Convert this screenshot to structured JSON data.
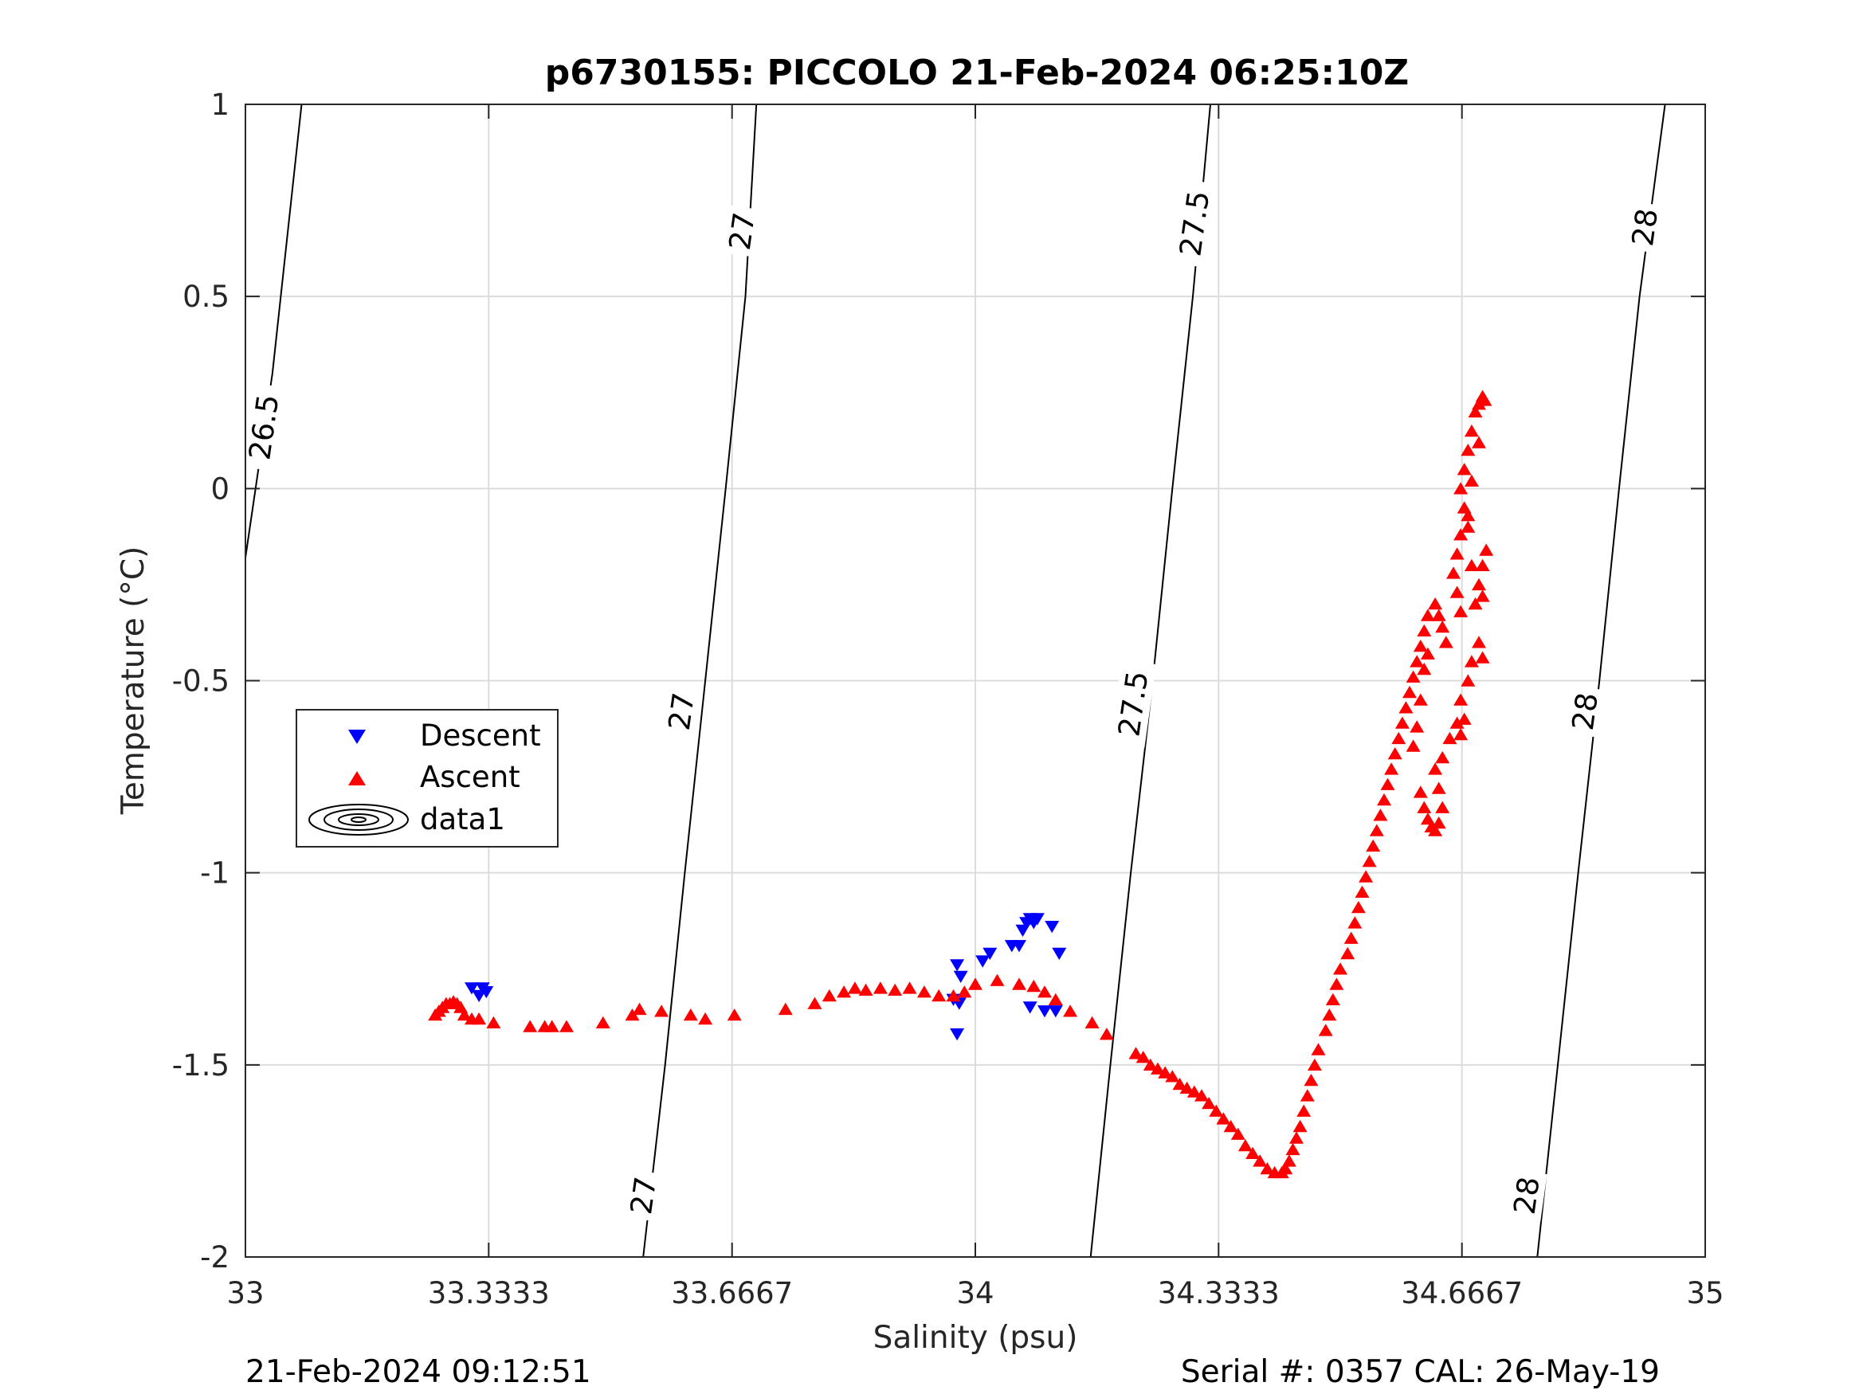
{
  "chart_data": {
    "type": "scatter",
    "title": "p6730155: PICCOLO 21-Feb-2024 06:25:10Z",
    "xlabel": "Salinity (psu)",
    "ylabel": "Temperature (°C)",
    "xlim": [
      33,
      35
    ],
    "ylim": [
      -2,
      1
    ],
    "x_ticks": [
      33,
      33.3333,
      33.6667,
      34,
      34.3333,
      34.6667,
      35
    ],
    "x_tick_labels": [
      "33",
      "33.3333",
      "33.6667",
      "34",
      "34.3333",
      "34.6667",
      "35"
    ],
    "y_ticks": [
      1,
      0.5,
      0,
      -0.5,
      -1,
      -1.5,
      -2
    ],
    "y_tick_labels": [
      "1",
      "0.5",
      "0",
      "-0.5",
      "-1",
      "-1.5",
      "-2"
    ],
    "grid": true,
    "legend_position": "middle-left",
    "footer_left": "21-Feb-2024 09:12:51",
    "footer_right": "Serial #: 0357  CAL: 26-May-19",
    "series": [
      {
        "name": "Descent",
        "marker": "triangle-down",
        "color": "#0000ff",
        "points": [
          [
            33.31,
            -1.3
          ],
          [
            33.32,
            -1.32
          ],
          [
            33.325,
            -1.3
          ],
          [
            33.33,
            -1.31
          ],
          [
            33.97,
            -1.33
          ],
          [
            33.975,
            -1.24
          ],
          [
            33.975,
            -1.42
          ],
          [
            33.98,
            -1.27
          ],
          [
            33.978,
            -1.34
          ],
          [
            34.01,
            -1.23
          ],
          [
            34.02,
            -1.21
          ],
          [
            34.05,
            -1.19
          ],
          [
            34.06,
            -1.19
          ],
          [
            34.065,
            -1.15
          ],
          [
            34.07,
            -1.13
          ],
          [
            34.075,
            -1.12
          ],
          [
            34.08,
            -1.13
          ],
          [
            34.085,
            -1.12
          ],
          [
            34.105,
            -1.14
          ],
          [
            34.115,
            -1.21
          ],
          [
            34.075,
            -1.35
          ],
          [
            34.095,
            -1.36
          ],
          [
            34.11,
            -1.36
          ]
        ]
      },
      {
        "name": "Ascent",
        "marker": "triangle-up",
        "color": "#ff0000",
        "points": [
          [
            33.26,
            -1.37
          ],
          [
            33.265,
            -1.36
          ],
          [
            33.27,
            -1.35
          ],
          [
            33.275,
            -1.34
          ],
          [
            33.28,
            -1.34
          ],
          [
            33.285,
            -1.335
          ],
          [
            33.29,
            -1.34
          ],
          [
            33.295,
            -1.35
          ],
          [
            33.3,
            -1.37
          ],
          [
            33.31,
            -1.38
          ],
          [
            33.32,
            -1.38
          ],
          [
            33.34,
            -1.39
          ],
          [
            33.39,
            -1.4
          ],
          [
            33.41,
            -1.4
          ],
          [
            33.42,
            -1.4
          ],
          [
            33.44,
            -1.4
          ],
          [
            33.49,
            -1.39
          ],
          [
            33.53,
            -1.37
          ],
          [
            33.54,
            -1.355
          ],
          [
            33.57,
            -1.36
          ],
          [
            33.61,
            -1.37
          ],
          [
            33.63,
            -1.38
          ],
          [
            33.67,
            -1.37
          ],
          [
            33.74,
            -1.355
          ],
          [
            33.78,
            -1.34
          ],
          [
            33.8,
            -1.32
          ],
          [
            33.82,
            -1.31
          ],
          [
            33.835,
            -1.3
          ],
          [
            33.85,
            -1.305
          ],
          [
            33.87,
            -1.3
          ],
          [
            33.89,
            -1.305
          ],
          [
            33.91,
            -1.3
          ],
          [
            33.93,
            -1.31
          ],
          [
            33.95,
            -1.32
          ],
          [
            33.97,
            -1.32
          ],
          [
            33.985,
            -1.31
          ],
          [
            34.0,
            -1.29
          ],
          [
            34.03,
            -1.28
          ],
          [
            34.06,
            -1.29
          ],
          [
            34.08,
            -1.295
          ],
          [
            34.095,
            -1.31
          ],
          [
            34.11,
            -1.33
          ],
          [
            34.13,
            -1.36
          ],
          [
            34.16,
            -1.39
          ],
          [
            34.18,
            -1.42
          ],
          [
            34.22,
            -1.47
          ],
          [
            34.23,
            -1.48
          ],
          [
            34.24,
            -1.5
          ],
          [
            34.25,
            -1.51
          ],
          [
            34.26,
            -1.52
          ],
          [
            34.27,
            -1.53
          ],
          [
            34.28,
            -1.55
          ],
          [
            34.29,
            -1.56
          ],
          [
            34.3,
            -1.57
          ],
          [
            34.31,
            -1.58
          ],
          [
            34.32,
            -1.6
          ],
          [
            34.33,
            -1.62
          ],
          [
            34.34,
            -1.64
          ],
          [
            34.35,
            -1.66
          ],
          [
            34.36,
            -1.68
          ],
          [
            34.37,
            -1.71
          ],
          [
            34.38,
            -1.73
          ],
          [
            34.39,
            -1.75
          ],
          [
            34.4,
            -1.77
          ],
          [
            34.41,
            -1.78
          ],
          [
            34.42,
            -1.78
          ],
          [
            34.425,
            -1.77
          ],
          [
            34.43,
            -1.75
          ],
          [
            34.435,
            -1.72
          ],
          [
            34.44,
            -1.69
          ],
          [
            34.445,
            -1.66
          ],
          [
            34.45,
            -1.62
          ],
          [
            34.455,
            -1.58
          ],
          [
            34.46,
            -1.54
          ],
          [
            34.465,
            -1.5
          ],
          [
            34.47,
            -1.46
          ],
          [
            34.48,
            -1.41
          ],
          [
            34.485,
            -1.37
          ],
          [
            34.49,
            -1.33
          ],
          [
            34.495,
            -1.29
          ],
          [
            34.5,
            -1.25
          ],
          [
            34.51,
            -1.21
          ],
          [
            34.515,
            -1.17
          ],
          [
            34.52,
            -1.13
          ],
          [
            34.525,
            -1.09
          ],
          [
            34.53,
            -1.05
          ],
          [
            34.535,
            -1.01
          ],
          [
            34.54,
            -0.97
          ],
          [
            34.545,
            -0.93
          ],
          [
            34.55,
            -0.89
          ],
          [
            34.555,
            -0.85
          ],
          [
            34.56,
            -0.81
          ],
          [
            34.565,
            -0.77
          ],
          [
            34.57,
            -0.73
          ],
          [
            34.575,
            -0.69
          ],
          [
            34.58,
            -0.65
          ],
          [
            34.585,
            -0.61
          ],
          [
            34.59,
            -0.57
          ],
          [
            34.595,
            -0.53
          ],
          [
            34.6,
            -0.49
          ],
          [
            34.605,
            -0.45
          ],
          [
            34.61,
            -0.41
          ],
          [
            34.615,
            -0.37
          ],
          [
            34.62,
            -0.33
          ],
          [
            34.63,
            -0.3
          ],
          [
            34.635,
            -0.33
          ],
          [
            34.64,
            -0.36
          ],
          [
            34.645,
            -0.4
          ],
          [
            34.62,
            -0.43
          ],
          [
            34.615,
            -0.47
          ],
          [
            34.61,
            -0.55
          ],
          [
            34.605,
            -0.62
          ],
          [
            34.6,
            -0.67
          ],
          [
            34.61,
            -0.79
          ],
          [
            34.615,
            -0.83
          ],
          [
            34.62,
            -0.86
          ],
          [
            34.625,
            -0.88
          ],
          [
            34.63,
            -0.89
          ],
          [
            34.635,
            -0.87
          ],
          [
            34.64,
            -0.83
          ],
          [
            34.635,
            -0.78
          ],
          [
            34.63,
            -0.73
          ],
          [
            34.64,
            -0.7
          ],
          [
            34.65,
            -0.65
          ],
          [
            34.66,
            -0.61
          ],
          [
            34.665,
            -0.64
          ],
          [
            34.67,
            -0.6
          ],
          [
            34.665,
            -0.55
          ],
          [
            34.675,
            -0.5
          ],
          [
            34.68,
            -0.45
          ],
          [
            34.69,
            -0.4
          ],
          [
            34.695,
            -0.44
          ],
          [
            34.685,
            -0.3
          ],
          [
            34.69,
            -0.25
          ],
          [
            34.695,
            -0.2
          ],
          [
            34.7,
            -0.16
          ],
          [
            34.695,
            -0.28
          ],
          [
            34.68,
            -0.2
          ],
          [
            34.675,
            -0.1
          ],
          [
            34.67,
            -0.05
          ],
          [
            34.665,
            -0.12
          ],
          [
            34.66,
            -0.17
          ],
          [
            34.655,
            -0.22
          ],
          [
            34.66,
            -0.27
          ],
          [
            34.665,
            -0.32
          ],
          [
            34.665,
            0.0
          ],
          [
            34.67,
            0.05
          ],
          [
            34.675,
            0.1
          ],
          [
            34.68,
            0.15
          ],
          [
            34.685,
            0.2
          ],
          [
            34.69,
            0.22
          ],
          [
            34.695,
            0.24
          ],
          [
            34.698,
            0.23
          ],
          [
            34.69,
            0.12
          ],
          [
            34.68,
            0.02
          ],
          [
            34.675,
            -0.07
          ]
        ]
      }
    ],
    "contours": [
      {
        "label": "26.5",
        "line": [
          [
            33.0,
            -0.18
          ],
          [
            33.037,
            0.3
          ],
          [
            33.077,
            1.0
          ]
        ]
      },
      {
        "label": "27",
        "line": [
          [
            33.545,
            -2.0
          ],
          [
            33.575,
            -1.5
          ],
          [
            33.602,
            -1.0
          ],
          [
            33.63,
            -0.5
          ],
          [
            33.658,
            0.0
          ],
          [
            33.685,
            0.5
          ],
          [
            33.7,
            1.0
          ]
        ]
      },
      {
        "label": "27.5",
        "line": [
          [
            34.158,
            -2.0
          ],
          [
            34.185,
            -1.5
          ],
          [
            34.213,
            -1.0
          ],
          [
            34.243,
            -0.5
          ],
          [
            34.27,
            0.0
          ],
          [
            34.298,
            0.5
          ],
          [
            34.322,
            1.0
          ]
        ]
      },
      {
        "label": "28",
        "line": [
          [
            34.77,
            -2.0
          ],
          [
            34.798,
            -1.5
          ],
          [
            34.826,
            -1.0
          ],
          [
            34.855,
            -0.5
          ],
          [
            34.882,
            0.0
          ],
          [
            34.91,
            0.5
          ],
          [
            34.945,
            1.0
          ]
        ]
      }
    ],
    "contour_label_positions": [
      {
        "text": "26.5",
        "x": 33.025,
        "y": 0.16
      },
      {
        "text": "27",
        "x": 33.597,
        "y": -0.58
      },
      {
        "text": "27",
        "x": 33.545,
        "y": -1.84
      },
      {
        "text": "27",
        "x": 33.68,
        "y": 0.67
      },
      {
        "text": "27.5",
        "x": 34.216,
        "y": -0.56
      },
      {
        "text": "27.5",
        "x": 34.3,
        "y": 0.69
      },
      {
        "text": "28",
        "x": 34.835,
        "y": -0.58
      },
      {
        "text": "28",
        "x": 34.755,
        "y": -1.84
      },
      {
        "text": "28",
        "x": 34.917,
        "y": 0.68
      }
    ],
    "legend": [
      {
        "label": "Descent",
        "symbol": "triangle-down",
        "color": "#0000ff"
      },
      {
        "label": "Ascent",
        "symbol": "triangle-up",
        "color": "#ff0000"
      },
      {
        "label": "data1",
        "symbol": "contour-ellipses",
        "color": "#000000"
      }
    ]
  }
}
